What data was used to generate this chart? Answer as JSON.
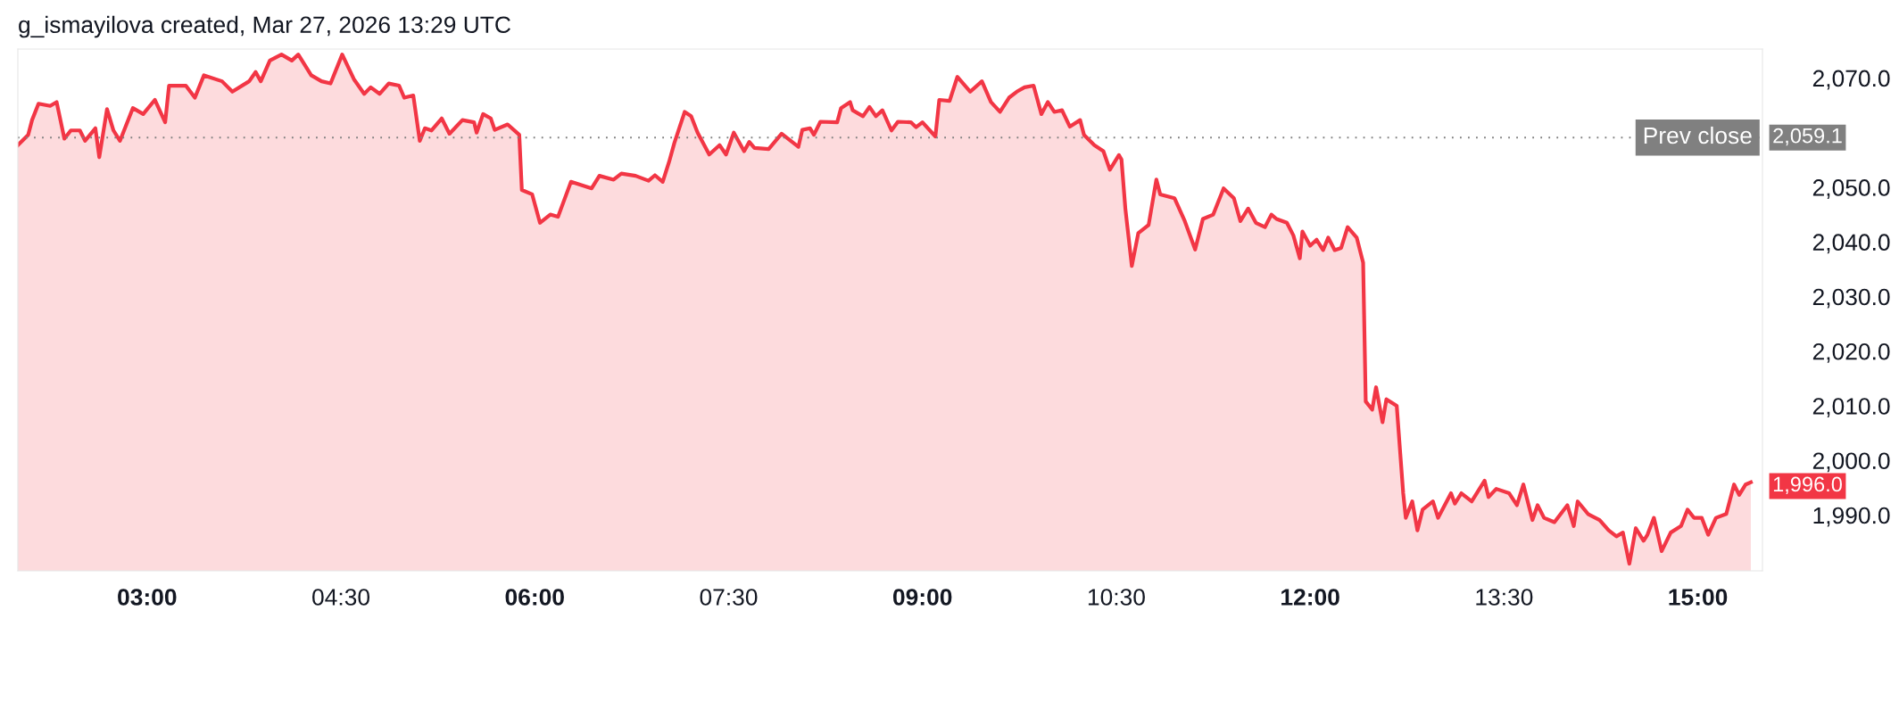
{
  "chart_data": {
    "type": "area",
    "title": "g_ismayilova created, Mar 27, 2026 13:29 UTC",
    "x": [
      2.0,
      2.08,
      2.11,
      2.16,
      2.25,
      2.3,
      2.36,
      2.41,
      2.48,
      2.52,
      2.6,
      2.63,
      2.69,
      2.74,
      2.79,
      2.89,
      2.97,
      3.06,
      3.14,
      3.17,
      3.3,
      3.37,
      3.44,
      3.58,
      3.66,
      3.79,
      3.84,
      3.88,
      3.95,
      4.04,
      4.12,
      4.17,
      4.27,
      4.35,
      4.42,
      4.51,
      4.6,
      4.68,
      4.73,
      4.8,
      4.87,
      4.95,
      4.99,
      5.06,
      5.11,
      5.15,
      5.2,
      5.28,
      5.34,
      5.44,
      5.53,
      5.55,
      5.6,
      5.66,
      5.69,
      5.79,
      5.88,
      5.9,
      5.98,
      6.04,
      6.12,
      6.18,
      6.28,
      6.44,
      6.5,
      6.61,
      6.67,
      6.78,
      6.88,
      6.93,
      6.99,
      7.04,
      7.08,
      7.16,
      7.21,
      7.26,
      7.35,
      7.43,
      7.48,
      7.54,
      7.62,
      7.66,
      7.7,
      7.81,
      7.91,
      8.04,
      8.07,
      8.13,
      8.16,
      8.21,
      8.34,
      8.37,
      8.44,
      8.46,
      8.54,
      8.59,
      8.64,
      8.69,
      8.76,
      8.81,
      8.91,
      8.95,
      9.0,
      9.1,
      9.13,
      9.21,
      9.27,
      9.37,
      9.46,
      9.53,
      9.6,
      9.67,
      9.73,
      9.79,
      9.86,
      9.92,
      9.97,
      10.02,
      10.08,
      10.14,
      10.22,
      10.25,
      10.33,
      10.4,
      10.45,
      10.52,
      10.54,
      10.57,
      10.62,
      10.67,
      10.75,
      10.81,
      10.84,
      10.95,
      11.03,
      11.11,
      11.17,
      11.25,
      11.33,
      11.41,
      11.46,
      11.52,
      11.58,
      11.65,
      11.7,
      11.74,
      11.82,
      11.87,
      11.92,
      11.94,
      12.0,
      12.05,
      12.1,
      12.14,
      12.19,
      12.24,
      12.29,
      12.36,
      12.41,
      12.43,
      12.48,
      12.51,
      12.56,
      12.59,
      12.67,
      12.72,
      12.74,
      12.79,
      12.83,
      12.87,
      12.95,
      12.99,
      13.09,
      13.12,
      13.17,
      13.25,
      13.35,
      13.38,
      13.44,
      13.54,
      13.6,
      13.65,
      13.72,
      13.76,
      13.81,
      13.89,
      13.99,
      14.04,
      14.07,
      14.15,
      14.24,
      14.31,
      14.37,
      14.42,
      14.47,
      14.52,
      14.58,
      14.61,
      14.66,
      14.72,
      14.79,
      14.87,
      14.92,
      14.97,
      15.03,
      15.08,
      15.14,
      15.22,
      15.28,
      15.32,
      15.37,
      15.41
    ],
    "series": [
      {
        "color": "#f23645",
        "values": [
          2057.7,
          2059.6,
          2062.3,
          2065.3,
          2064.9,
          2065.6,
          2058.9,
          2060.4,
          2060.4,
          2058.5,
          2060.8,
          2055.5,
          2064.3,
          2060.4,
          2058.5,
          2064.5,
          2063.4,
          2066.0,
          2061.9,
          2068.6,
          2068.6,
          2066.4,
          2070.5,
          2069.4,
          2067.5,
          2069.4,
          2071.1,
          2069.4,
          2073.2,
          2074.3,
          2073.2,
          2074.3,
          2070.5,
          2069.4,
          2069.0,
          2074.3,
          2069.8,
          2067.1,
          2068.3,
          2067.1,
          2069.0,
          2068.6,
          2066.4,
          2066.8,
          2058.5,
          2060.8,
          2060.4,
          2062.6,
          2059.8,
          2062.3,
          2061.9,
          2060.0,
          2063.4,
          2062.6,
          2060.5,
          2061.5,
          2059.6,
          2049.5,
          2048.7,
          2043.5,
          2045.0,
          2044.6,
          2051.0,
          2049.8,
          2052.1,
          2051.4,
          2052.5,
          2052.1,
          2051.2,
          2052.2,
          2051.0,
          2054.7,
          2058.1,
          2063.8,
          2063.0,
          2060.0,
          2056.0,
          2057.7,
          2056.0,
          2060.0,
          2056.6,
          2058.3,
          2057.2,
          2057.0,
          2059.8,
          2057.4,
          2060.5,
          2060.8,
          2059.6,
          2062.0,
          2061.9,
          2064.5,
          2065.6,
          2064.1,
          2063.0,
          2064.7,
          2063.0,
          2064.1,
          2060.4,
          2062.0,
          2061.9,
          2061.0,
          2061.9,
          2059.3,
          2066.0,
          2065.8,
          2070.2,
          2067.5,
          2069.4,
          2065.6,
          2063.8,
          2066.4,
          2067.5,
          2068.3,
          2068.6,
          2063.4,
          2065.6,
          2063.8,
          2064.1,
          2061.1,
          2062.3,
          2059.6,
          2057.7,
          2056.6,
          2053.2,
          2055.9,
          2055.1,
          2046.1,
          2035.6,
          2041.6,
          2043.1,
          2051.4,
          2048.7,
          2048.0,
          2043.8,
          2038.6,
          2044.2,
          2045.0,
          2049.8,
          2048.0,
          2043.8,
          2046.1,
          2043.5,
          2042.7,
          2045.0,
          2044.2,
          2043.5,
          2041.2,
          2037.0,
          2041.9,
          2039.3,
          2040.4,
          2038.5,
          2040.8,
          2038.5,
          2038.9,
          2042.7,
          2040.8,
          2036.2,
          2010.8,
          2009.3,
          2013.4,
          2007.0,
          2011.2,
          2010.0,
          1994.0,
          1989.5,
          1992.5,
          1987.2,
          1991.0,
          1992.5,
          1989.5,
          1994.0,
          1992.1,
          1994.0,
          1992.5,
          1996.3,
          1993.3,
          1994.8,
          1994.0,
          1991.8,
          1995.6,
          1989.1,
          1991.8,
          1989.5,
          1988.7,
          1991.8,
          1988.0,
          1992.5,
          1990.2,
          1989.1,
          1987.2,
          1986.1,
          1986.8,
          1981.1,
          1987.6,
          1985.3,
          1986.4,
          1989.5,
          1983.4,
          1986.8,
          1988.0,
          1991.0,
          1989.5,
          1989.5,
          1986.4,
          1989.5,
          1990.2,
          1995.6,
          1993.7,
          1995.6,
          1996.0
        ]
      }
    ],
    "xlim": [
      2.0,
      15.5
    ],
    "xticks": [
      {
        "value": 3,
        "label": "03:00"
      },
      {
        "value": 4.5,
        "label": "04:30"
      },
      {
        "value": 6,
        "label": "06:00"
      },
      {
        "value": 7.5,
        "label": "07:30"
      },
      {
        "value": 9,
        "label": "09:00"
      },
      {
        "value": 10.5,
        "label": "10:30"
      },
      {
        "value": 12,
        "label": "12:00"
      },
      {
        "value": 13.5,
        "label": "13:30"
      },
      {
        "value": 15,
        "label": "15:00"
      }
    ],
    "ylim": [
      1979.8,
      2075.3
    ],
    "yticks": [
      {
        "value": 1990,
        "label": "1,990.0"
      },
      {
        "value": 2000,
        "label": "2,000.0"
      },
      {
        "value": 2010,
        "label": "2,010.0"
      },
      {
        "value": 2020,
        "label": "2,020.0"
      },
      {
        "value": 2030,
        "label": "2,030.0"
      },
      {
        "value": 2040,
        "label": "2,040.0"
      },
      {
        "value": 2050,
        "label": "2,050.0"
      },
      {
        "value": 2070,
        "label": "2,070.0"
      }
    ],
    "ref_lines": [
      {
        "axis": "y",
        "value": 2059.1,
        "label": "Prev close",
        "color": "#808080",
        "line_style": "dotted"
      }
    ],
    "annotations": [
      "2,059.1",
      "1,996.0"
    ],
    "grid": false,
    "legend": false
  }
}
